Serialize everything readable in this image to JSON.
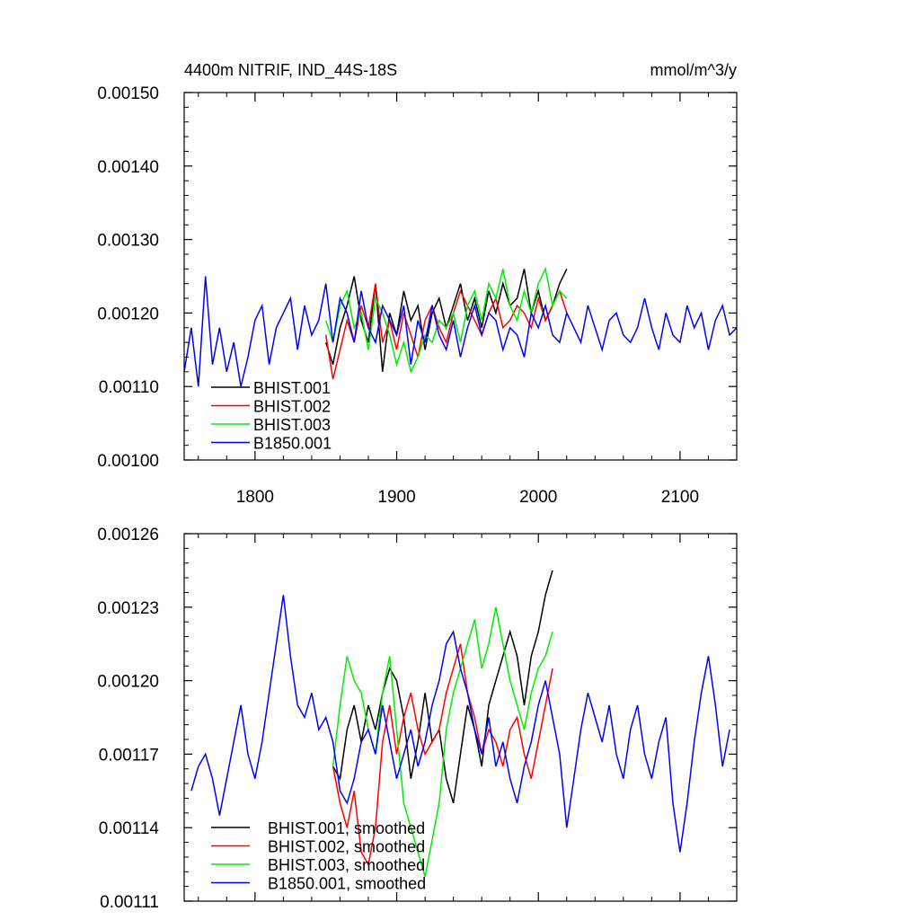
{
  "chart_data": [
    {
      "type": "line",
      "title": "4400m NITRIF, IND_44S-18S",
      "units": "mmol/m^3/y",
      "xlim": [
        1750,
        2140
      ],
      "ylim": [
        0.001,
        0.0015
      ],
      "x_ticks": [
        1800,
        1900,
        2000,
        2100
      ],
      "x_tick_labels": [
        "1800",
        "1900",
        "2000",
        "2100"
      ],
      "y_ticks": [
        0.001,
        0.0011,
        0.0012,
        0.0013,
        0.0014,
        0.0015
      ],
      "y_tick_labels": [
        "0.00100",
        "0.00110",
        "0.00120",
        "0.00130",
        "0.00140",
        "0.00150"
      ],
      "legend_position": "bottom-left",
      "series": [
        {
          "name": "BHIST.001",
          "color": "#000000",
          "x_start": 1850,
          "x_step": 5,
          "values": [
            0.00116,
            0.00113,
            0.00118,
            0.00121,
            0.00125,
            0.00119,
            0.00116,
            0.00124,
            0.00112,
            0.0012,
            0.00117,
            0.00123,
            0.00119,
            0.00121,
            0.00115,
            0.0012,
            0.00122,
            0.00118,
            0.00121,
            0.00124,
            0.00119,
            0.00122,
            0.00118,
            0.00123,
            0.0012,
            0.00124,
            0.00121,
            0.00122,
            0.00126,
            0.0012,
            0.00123,
            0.00119,
            0.00121,
            0.00124,
            0.00126
          ]
        },
        {
          "name": "BHIST.002",
          "color": "#ff0000",
          "x_start": 1850,
          "x_step": 5,
          "values": [
            0.00117,
            0.00111,
            0.00115,
            0.00119,
            0.00116,
            0.00121,
            0.00118,
            0.00124,
            0.00116,
            0.00119,
            0.00115,
            0.0012,
            0.00117,
            0.00114,
            0.00119,
            0.00121,
            0.00118,
            0.00116,
            0.0012,
            0.00123,
            0.00121,
            0.00119,
            0.00117,
            0.0012,
            0.00122,
            0.00118,
            0.00119,
            0.00121,
            0.0012,
            0.00118,
            0.00122,
            0.00119,
            0.00121,
            0.00123,
            0.0012
          ]
        },
        {
          "name": "BHIST.003",
          "color": "#00ee00",
          "x_start": 1850,
          "x_step": 5,
          "values": [
            0.00119,
            0.00116,
            0.00121,
            0.00123,
            0.00118,
            0.0012,
            0.00115,
            0.00122,
            0.0012,
            0.00117,
            0.00113,
            0.00116,
            0.00112,
            0.00114,
            0.00117,
            0.00116,
            0.00119,
            0.00118,
            0.0012,
            0.00116,
            0.00121,
            0.00123,
            0.00119,
            0.00124,
            0.00122,
            0.00126,
            0.00121,
            0.00119,
            0.00123,
            0.0012,
            0.00124,
            0.00126,
            0.00121,
            0.00123,
            0.00122
          ]
        },
        {
          "name": "B1850.001",
          "color": "#0000ff",
          "x_start": 1750,
          "x_step": 5,
          "values": [
            0.00112,
            0.00118,
            0.0011,
            0.00125,
            0.00113,
            0.00118,
            0.00112,
            0.00116,
            0.0011,
            0.00114,
            0.00119,
            0.00121,
            0.00113,
            0.00118,
            0.0012,
            0.00122,
            0.00115,
            0.00121,
            0.00117,
            0.00119,
            0.00124,
            0.00116,
            0.00122,
            0.0012,
            0.00116,
            0.00123,
            0.00118,
            0.00116,
            0.00121,
            0.00119,
            0.00117,
            0.00121,
            0.00113,
            0.00119,
            0.00116,
            0.00121,
            0.00117,
            0.00115,
            0.00119,
            0.00114,
            0.00118,
            0.00121,
            0.00117,
            0.0012,
            0.00119,
            0.00115,
            0.00118,
            0.00117,
            0.00114,
            0.0012,
            0.00118,
            0.00121,
            0.00117,
            0.00116,
            0.0012,
            0.00118,
            0.00116,
            0.00121,
            0.00118,
            0.00115,
            0.00119,
            0.0012,
            0.00117,
            0.00116,
            0.00118,
            0.00122,
            0.00118,
            0.00115,
            0.0012,
            0.00117,
            0.00116,
            0.00121,
            0.00118,
            0.0012,
            0.00115,
            0.00119,
            0.00121,
            0.00117,
            0.00118
          ]
        }
      ]
    },
    {
      "type": "line",
      "xlim": [
        1750,
        2140
      ],
      "ylim": [
        0.00111,
        0.00126
      ],
      "x_ticks": [
        1800,
        1900,
        2000,
        2100
      ],
      "y_ticks": [
        0.00111,
        0.00114,
        0.00117,
        0.0012,
        0.00123,
        0.00126
      ],
      "y_tick_labels": [
        "0.00111",
        "0.00114",
        "0.00117",
        "0.00120",
        "0.00123",
        "0.00126"
      ],
      "legend_position": "bottom-left",
      "series": [
        {
          "name": "BHIST.001, smoothed",
          "color": "#000000",
          "x": [
            1855,
            1860,
            1865,
            1870,
            1875,
            1880,
            1885,
            1890,
            1895,
            1900,
            1905,
            1910,
            1915,
            1920,
            1925,
            1930,
            1935,
            1940,
            1945,
            1950,
            1955,
            1960,
            1965,
            1970,
            1975,
            1980,
            1985,
            1990,
            1995,
            2000,
            2005,
            2010
          ],
          "values": [
            0.001165,
            0.00116,
            0.00118,
            0.00119,
            0.001175,
            0.00119,
            0.00118,
            0.001195,
            0.001205,
            0.0012,
            0.001185,
            0.00116,
            0.001175,
            0.001195,
            0.001175,
            0.00118,
            0.00116,
            0.00115,
            0.00117,
            0.00119,
            0.00118,
            0.001165,
            0.00119,
            0.0012,
            0.00121,
            0.00122,
            0.00121,
            0.00119,
            0.00121,
            0.00122,
            0.001235,
            0.001245
          ]
        },
        {
          "name": "BHIST.002, smoothed",
          "color": "#ff0000",
          "x": [
            1855,
            1860,
            1865,
            1870,
            1875,
            1880,
            1885,
            1890,
            1895,
            1900,
            1905,
            1910,
            1915,
            1920,
            1925,
            1930,
            1935,
            1940,
            1945,
            1950,
            1955,
            1960,
            1965,
            1970,
            1975,
            1980,
            1985,
            1990,
            1995,
            2000,
            2005,
            2010
          ],
          "values": [
            0.001165,
            0.00115,
            0.00114,
            0.001155,
            0.00113,
            0.001125,
            0.00114,
            0.001175,
            0.00119,
            0.00117,
            0.001185,
            0.001195,
            0.00118,
            0.00117,
            0.001175,
            0.00118,
            0.001195,
            0.001205,
            0.001215,
            0.001195,
            0.001185,
            0.00117,
            0.00118,
            0.001175,
            0.001165,
            0.00118,
            0.001185,
            0.00117,
            0.00116,
            0.001175,
            0.00119,
            0.001205
          ]
        },
        {
          "name": "BHIST.003, smoothed",
          "color": "#00ee00",
          "x": [
            1855,
            1860,
            1865,
            1870,
            1875,
            1880,
            1885,
            1890,
            1895,
            1900,
            1905,
            1910,
            1915,
            1920,
            1925,
            1930,
            1935,
            1940,
            1945,
            1950,
            1955,
            1960,
            1965,
            1970,
            1975,
            1980,
            1985,
            1990,
            1995,
            2000,
            2005,
            2010
          ],
          "values": [
            0.001165,
            0.00119,
            0.00121,
            0.0012,
            0.001195,
            0.00118,
            0.00117,
            0.001195,
            0.00121,
            0.00118,
            0.00115,
            0.00114,
            0.00113,
            0.00112,
            0.001135,
            0.00115,
            0.00118,
            0.001195,
            0.001205,
            0.001215,
            0.001225,
            0.001205,
            0.001215,
            0.00123,
            0.001215,
            0.0012,
            0.00119,
            0.00118,
            0.001195,
            0.001205,
            0.00121,
            0.00122
          ]
        },
        {
          "name": "B1850.001, smoothed",
          "color": "#0000ff",
          "x": [
            1755,
            1760,
            1765,
            1770,
            1775,
            1780,
            1785,
            1790,
            1795,
            1800,
            1805,
            1810,
            1815,
            1820,
            1825,
            1830,
            1835,
            1840,
            1845,
            1850,
            1855,
            1860,
            1865,
            1870,
            1875,
            1880,
            1885,
            1890,
            1895,
            1900,
            1905,
            1910,
            1915,
            1920,
            1925,
            1930,
            1935,
            1940,
            1945,
            1950,
            1955,
            1960,
            1965,
            1970,
            1975,
            1980,
            1985,
            1990,
            1995,
            2000,
            2005,
            2010,
            2015,
            2020,
            2025,
            2030,
            2035,
            2040,
            2045,
            2050,
            2055,
            2060,
            2065,
            2070,
            2075,
            2080,
            2085,
            2090,
            2095,
            2100,
            2105,
            2110,
            2115,
            2120,
            2125,
            2130,
            2135
          ],
          "values": [
            0.001155,
            0.001165,
            0.00117,
            0.00116,
            0.001145,
            0.00116,
            0.001175,
            0.00119,
            0.00117,
            0.00116,
            0.001175,
            0.001195,
            0.001215,
            0.001235,
            0.00121,
            0.00119,
            0.001185,
            0.001195,
            0.00118,
            0.001185,
            0.001175,
            0.001155,
            0.00115,
            0.00116,
            0.001175,
            0.00118,
            0.00117,
            0.00119,
            0.001175,
            0.00116,
            0.00117,
            0.00118,
            0.001165,
            0.001175,
            0.00119,
            0.0012,
            0.001215,
            0.00122,
            0.001205,
            0.001195,
            0.00118,
            0.00117,
            0.001185,
            0.001165,
            0.001175,
            0.00116,
            0.00115,
            0.001165,
            0.001175,
            0.00119,
            0.0012,
            0.001185,
            0.00117,
            0.00114,
            0.00116,
            0.00118,
            0.001195,
            0.001185,
            0.001175,
            0.00119,
            0.00117,
            0.00116,
            0.00118,
            0.00119,
            0.00117,
            0.00116,
            0.001175,
            0.001185,
            0.00115,
            0.00113,
            0.00115,
            0.001175,
            0.001195,
            0.00121,
            0.00119,
            0.001165,
            0.00118
          ]
        }
      ]
    }
  ]
}
